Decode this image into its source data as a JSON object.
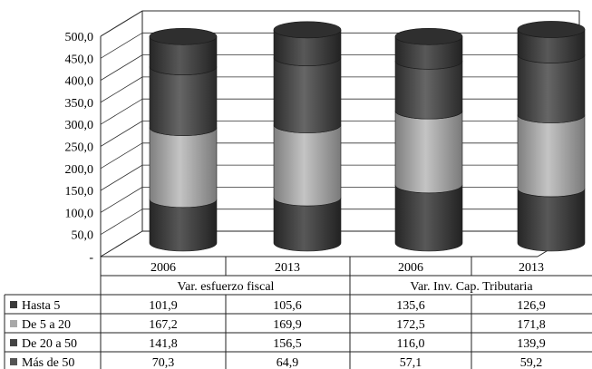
{
  "chart_data": {
    "type": "bar",
    "stacked": true,
    "style": "3d-cylinder",
    "groups": [
      {
        "label": "Var. esfuerzo fiscal",
        "categories": [
          "2006",
          "2013"
        ]
      },
      {
        "label": "Var. Inv. Cap. Tributaria",
        "categories": [
          "2006",
          "2013"
        ]
      }
    ],
    "categories": [
      "2006",
      "2013",
      "2006",
      "2013"
    ],
    "series": [
      {
        "name": "Hasta 5",
        "values": [
          101.9,
          105.6,
          135.6,
          126.9
        ],
        "labels": [
          "101,9",
          "105,6",
          "135,6",
          "126,9"
        ],
        "color": "#3a3a3a"
      },
      {
        "name": "De 5 a 20",
        "values": [
          167.2,
          169.9,
          172.5,
          171.8
        ],
        "labels": [
          "167,2",
          "169,9",
          "172,5",
          "171,8"
        ],
        "color": "#a8a8a8"
      },
      {
        "name": "De 20 a 50",
        "values": [
          141.8,
          156.5,
          116.0,
          139.9
        ],
        "labels": [
          "141,8",
          "156,5",
          "116,0",
          "139,9"
        ],
        "color": "#444444"
      },
      {
        "name": "Más de 50",
        "values": [
          70.3,
          64.9,
          57.1,
          59.2
        ],
        "labels": [
          "70,3",
          "64,9",
          "57,1",
          "59,2"
        ],
        "color": "#545454"
      }
    ],
    "y_ticks": [
      "-",
      "50,0",
      "100,0",
      "150,0",
      "200,0",
      "250,0",
      "300,0",
      "350,0",
      "400,0",
      "450,0",
      "500,0"
    ],
    "ylim": [
      0,
      500
    ],
    "grid": false,
    "legend": "data-table"
  }
}
